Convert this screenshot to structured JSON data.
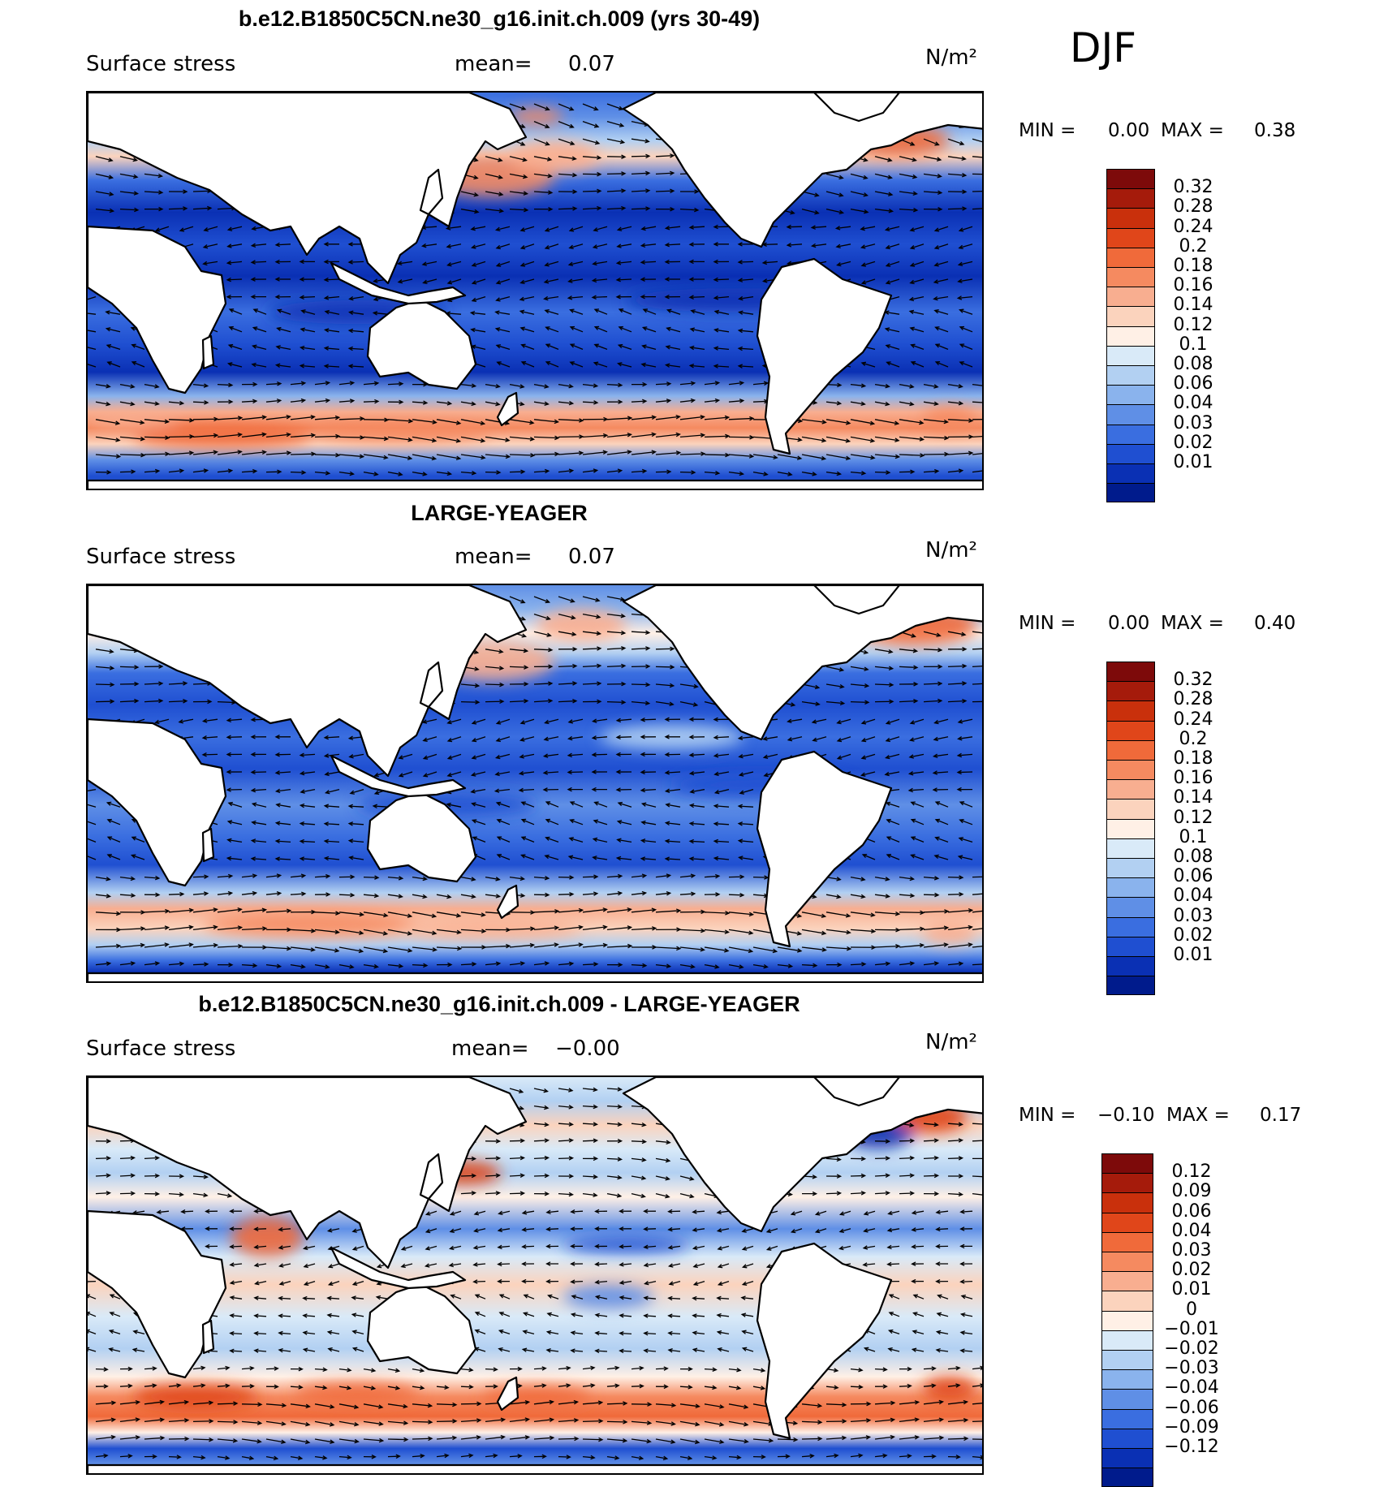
{
  "season": "DJF",
  "colors": {
    "coastline": "#000000",
    "land": "#ffffff",
    "vector": "#000000"
  },
  "panels": [
    {
      "title": "b.e12.B1850C5CN.ne30_g16.init.ch.009 (yrs 30-49)",
      "variable": "Surface stress",
      "mean_label": "mean=",
      "mean_value": "0.07",
      "units": "N/m²",
      "min_label": "MIN =",
      "min_value": "0.00",
      "max_label": "MAX =",
      "max_value": "0.38",
      "colorbar_labels": [
        "0.32",
        "0.28",
        "0.24",
        "0.2",
        "0.18",
        "0.16",
        "0.14",
        "0.12",
        "0.1",
        "0.08",
        "0.06",
        "0.04",
        "0.03",
        "0.02",
        "0.01"
      ],
      "colorbar_colors": [
        "#7d0a0a",
        "#a51b0b",
        "#c9300c",
        "#e0461a",
        "#f06a3a",
        "#f58a60",
        "#f8ae90",
        "#fbd3bd",
        "#fff0e6",
        "#d9eaf8",
        "#b2d0f2",
        "#8ab3ed",
        "#5f8fe6",
        "#3a6ee0",
        "#1f4fd1",
        "#0a30b4",
        "#001b8c"
      ]
    },
    {
      "title": "LARGE-YEAGER",
      "variable": "Surface stress",
      "mean_label": "mean=",
      "mean_value": "0.07",
      "units": "N/m²",
      "min_label": "MIN =",
      "min_value": "0.00",
      "max_label": "MAX =",
      "max_value": "0.40",
      "colorbar_labels": [
        "0.32",
        "0.28",
        "0.24",
        "0.2",
        "0.18",
        "0.16",
        "0.14",
        "0.12",
        "0.1",
        "0.08",
        "0.06",
        "0.04",
        "0.03",
        "0.02",
        "0.01"
      ],
      "colorbar_colors": [
        "#7d0a0a",
        "#a51b0b",
        "#c9300c",
        "#e0461a",
        "#f06a3a",
        "#f58a60",
        "#f8ae90",
        "#fbd3bd",
        "#fff0e6",
        "#d9eaf8",
        "#b2d0f2",
        "#8ab3ed",
        "#5f8fe6",
        "#3a6ee0",
        "#1f4fd1",
        "#0a30b4",
        "#001b8c"
      ]
    },
    {
      "title": "b.e12.B1850C5CN.ne30_g16.init.ch.009 - LARGE-YEAGER",
      "variable": "Surface stress",
      "mean_label": "mean=",
      "mean_value": "−0.00",
      "units": "N/m²",
      "min_label": "MIN =",
      "min_value": "−0.10",
      "max_label": "MAX =",
      "max_value": "0.17",
      "colorbar_labels": [
        "0.12",
        "0.09",
        "0.06",
        "0.04",
        "0.03",
        "0.02",
        "0.01",
        "0",
        "−0.01",
        "−0.02",
        "−0.03",
        "−0.04",
        "−0.06",
        "−0.09",
        "−0.12"
      ],
      "colorbar_colors": [
        "#7d0a0a",
        "#a51b0b",
        "#c9300c",
        "#e0461a",
        "#f06a3a",
        "#f58a60",
        "#f8ae90",
        "#fbd3bd",
        "#fff0e6",
        "#d9eaf8",
        "#b2d0f2",
        "#8ab3ed",
        "#5f8fe6",
        "#3a6ee0",
        "#1f4fd1",
        "#0a30b4",
        "#001b8c"
      ]
    }
  ]
}
